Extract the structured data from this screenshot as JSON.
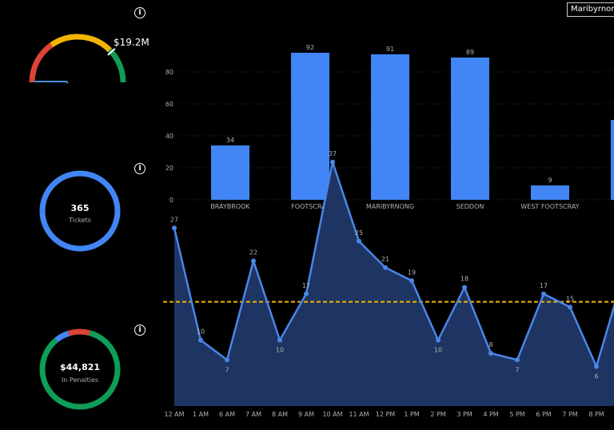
{
  "info_icon": "info-icon",
  "tooltip": {
    "label": "Maribyrnong"
  },
  "gauge": {
    "value_label": "$19.2M",
    "segments": [
      {
        "name": "red",
        "color": "#db4437"
      },
      {
        "name": "yellow",
        "color": "#f4b400"
      },
      {
        "name": "green",
        "color": "#0f9d58"
      }
    ],
    "needle_color": "#4a90d9",
    "marker_color": "#ffffff"
  },
  "tickets_kpi": {
    "value": "365",
    "label": "Tickets",
    "ring_color": "#4285f4"
  },
  "penalties_kpi": {
    "value": "$44,821",
    "label": "In Penalties",
    "ring_segments": [
      {
        "name": "green",
        "color": "#0f9d58",
        "fraction": 0.85
      },
      {
        "name": "blue",
        "color": "#4285f4",
        "fraction": 0.06
      },
      {
        "name": "red",
        "color": "#db4437",
        "fraction": 0.09
      }
    ]
  },
  "colors": {
    "bar": "#4285f4",
    "line": "#4a86e8",
    "area": "#1e3462",
    "avg_line": "#f4b400",
    "axis_text": "#b0b0b0",
    "grid": "#3a3a3a"
  },
  "chart_data": [
    {
      "type": "bar",
      "categories": [
        "BRAYBROOK",
        "FOOTSCRAY",
        "MARIBYRNONG",
        "SEDDON",
        "WEST FOOTSCRAY"
      ],
      "values": [
        34,
        92,
        91,
        89,
        9
      ],
      "ylim": [
        0,
        100
      ],
      "yticks": [
        0,
        20,
        40,
        60,
        80
      ],
      "grid": true
    },
    {
      "type": "area",
      "categories": [
        "12 AM",
        "1 AM",
        "6 AM",
        "7 AM",
        "8 AM",
        "9 AM",
        "10 AM",
        "11 AM",
        "12 PM",
        "1 PM",
        "2 PM",
        "3 PM",
        "4 PM",
        "5 PM",
        "6 PM",
        "7 PM",
        "8 PM"
      ],
      "values": [
        27,
        10,
        7,
        22,
        10,
        17,
        37,
        25,
        21,
        19,
        10,
        18,
        8,
        7,
        17,
        15,
        6
      ],
      "reference_line": {
        "value": 15.8,
        "style": "dashed"
      },
      "grid": false
    }
  ]
}
